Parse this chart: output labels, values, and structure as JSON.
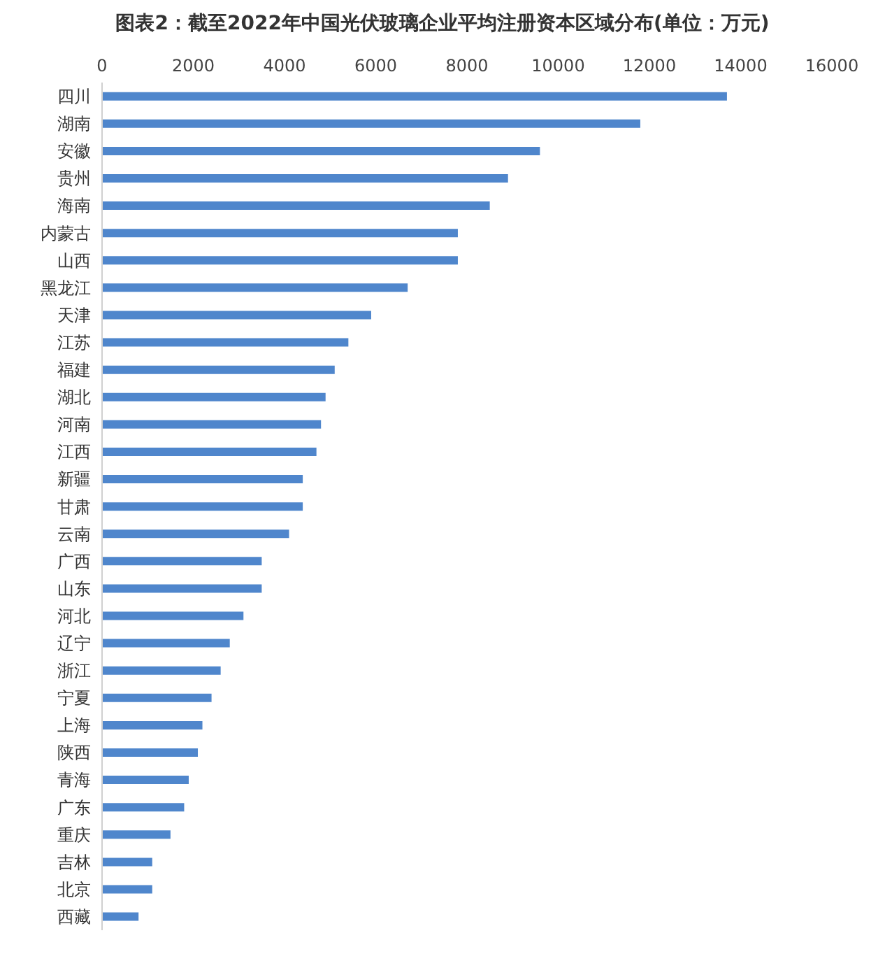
{
  "chart_data": {
    "type": "bar",
    "orientation": "horizontal",
    "title": "图表2：截至2022年中国光伏玻璃企业平均注册资本区域分布(单位：万元)",
    "categories": [
      "四川",
      "湖南",
      "安徽",
      "贵州",
      "海南",
      "内蒙古",
      "山西",
      "黑龙江",
      "天津",
      "江苏",
      "福建",
      "湖北",
      "河南",
      "江西",
      "新疆",
      "甘肃",
      "云南",
      "广西",
      "山东",
      "河北",
      "辽宁",
      "浙江",
      "宁夏",
      "上海",
      "陕西",
      "青海",
      "广东",
      "重庆",
      "吉林",
      "北京",
      "西藏"
    ],
    "values": [
      13700,
      11800,
      9600,
      8900,
      8500,
      7800,
      7800,
      6700,
      5900,
      5400,
      5100,
      4900,
      4800,
      4700,
      4400,
      4400,
      4100,
      3500,
      3500,
      3100,
      2800,
      2600,
      2400,
      2200,
      2100,
      1900,
      1800,
      1500,
      1100,
      1100,
      800
    ],
    "color": "#4f86cc",
    "xlim": [
      0,
      16000
    ],
    "xticks": [
      0,
      2000,
      4000,
      6000,
      8000,
      10000,
      12000,
      14000,
      16000
    ],
    "grid": false,
    "legend": false
  }
}
